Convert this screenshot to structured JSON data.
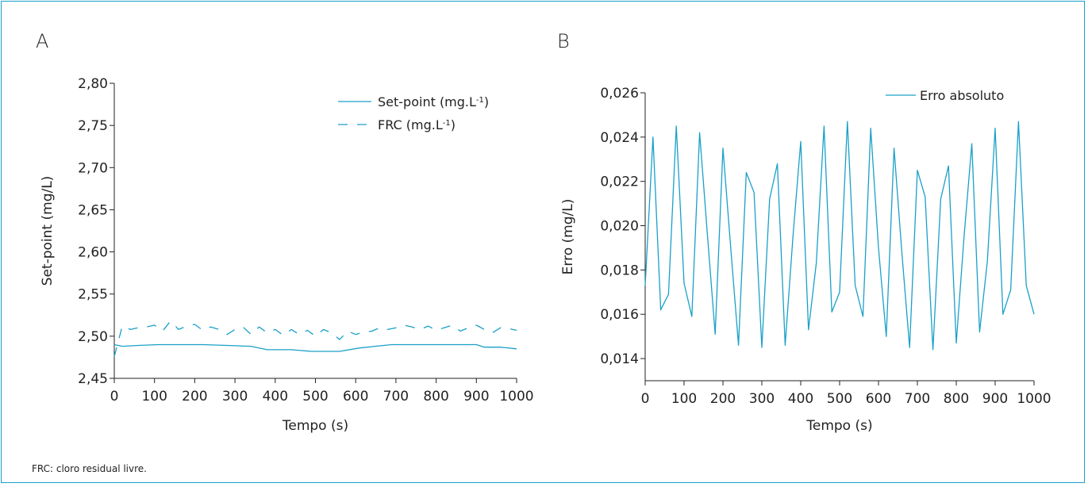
{
  "chart_data": [
    {
      "panel": "A",
      "type": "line",
      "xlabel": "Tempo (s)",
      "ylabel": "Set-point (mg/L)",
      "xlim": [
        0,
        1000
      ],
      "ylim": [
        2.45,
        2.8
      ],
      "xticks": [
        "0",
        "100",
        "200",
        "300",
        "400",
        "500",
        "600",
        "700",
        "800",
        "900",
        "1000"
      ],
      "yticks": [
        "2,45",
        "2,50",
        "2,55",
        "2,60",
        "2,65",
        "2,70",
        "2,75",
        "2,80"
      ],
      "legend_position": "top-right",
      "color": "#1aa0c8",
      "series": [
        {
          "name": "Set-point (mg.L",
          "name_sup": "-1",
          "name_end": ")",
          "style": "solid",
          "x": [
            0,
            20,
            60,
            110,
            160,
            220,
            280,
            340,
            380,
            440,
            490,
            560,
            610,
            670,
            690,
            740,
            800,
            850,
            900,
            920,
            960,
            1000
          ],
          "y": [
            2.49,
            2.488,
            2.489,
            2.49,
            2.49,
            2.49,
            2.489,
            2.488,
            2.484,
            2.484,
            2.482,
            2.482,
            2.486,
            2.489,
            2.49,
            2.49,
            2.49,
            2.49,
            2.49,
            2.487,
            2.487,
            2.485
          ]
        },
        {
          "name": "FRC (mg.L",
          "name_sup": "-1",
          "name_end": ")",
          "style": "dashed",
          "x": [
            0,
            20,
            40,
            60,
            80,
            100,
            120,
            140,
            160,
            180,
            200,
            220,
            240,
            260,
            280,
            300,
            320,
            340,
            360,
            380,
            400,
            420,
            440,
            460,
            480,
            500,
            520,
            540,
            560,
            580,
            600,
            620,
            640,
            660,
            680,
            700,
            720,
            740,
            760,
            780,
            800,
            820,
            840,
            860,
            880,
            900,
            920,
            940,
            960,
            980,
            1000
          ],
          "y": [
            2.476,
            2.512,
            2.508,
            2.51,
            2.511,
            2.513,
            2.506,
            2.518,
            2.508,
            2.512,
            2.514,
            2.507,
            2.511,
            2.508,
            2.502,
            2.508,
            2.511,
            2.502,
            2.511,
            2.504,
            2.508,
            2.501,
            2.508,
            2.502,
            2.507,
            2.5,
            2.508,
            2.504,
            2.496,
            2.506,
            2.502,
            2.505,
            2.506,
            2.51,
            2.508,
            2.51,
            2.513,
            2.511,
            2.508,
            2.512,
            2.507,
            2.51,
            2.513,
            2.506,
            2.51,
            2.513,
            2.508,
            2.504,
            2.51,
            2.509,
            2.507
          ]
        }
      ]
    },
    {
      "panel": "B",
      "type": "line",
      "xlabel": "Tempo (s)",
      "ylabel": "Erro (mg/L)",
      "xlim": [
        0,
        1000
      ],
      "ylim": [
        0.013,
        0.026
      ],
      "xticks": [
        "0",
        "100",
        "200",
        "300",
        "400",
        "500",
        "600",
        "700",
        "800",
        "900",
        "1000"
      ],
      "yticks": [
        "0,014",
        "0,016",
        "0,018",
        "0,020",
        "0,022",
        "0,024",
        "0,026"
      ],
      "legend_position": "top-right",
      "color": "#1aa0c8",
      "series": [
        {
          "name": "Erro absoluto",
          "style": "solid",
          "x": [
            0,
            20,
            40,
            60,
            80,
            100,
            120,
            140,
            160,
            180,
            200,
            220,
            240,
            260,
            280,
            300,
            320,
            340,
            360,
            380,
            400,
            420,
            440,
            460,
            480,
            500,
            520,
            540,
            560,
            580,
            600,
            620,
            640,
            660,
            680,
            700,
            720,
            740,
            760,
            780,
            800,
            820,
            840,
            860,
            880,
            900,
            920,
            940,
            960,
            980,
            1000
          ],
          "y": [
            0.0173,
            0.024,
            0.0162,
            0.0169,
            0.0245,
            0.0174,
            0.0159,
            0.0242,
            0.0196,
            0.0151,
            0.0235,
            0.019,
            0.0146,
            0.0224,
            0.0215,
            0.0145,
            0.0212,
            0.0228,
            0.0146,
            0.0195,
            0.0238,
            0.0153,
            0.0183,
            0.0245,
            0.0161,
            0.017,
            0.0247,
            0.0173,
            0.0159,
            0.0244,
            0.019,
            0.015,
            0.0235,
            0.0188,
            0.0145,
            0.0225,
            0.0213,
            0.0144,
            0.0212,
            0.0227,
            0.0147,
            0.0195,
            0.0237,
            0.0152,
            0.0184,
            0.0244,
            0.016,
            0.0171,
            0.0247,
            0.0173,
            0.016
          ]
        }
      ]
    }
  ],
  "footnote": "FRC: cloro residual livre."
}
